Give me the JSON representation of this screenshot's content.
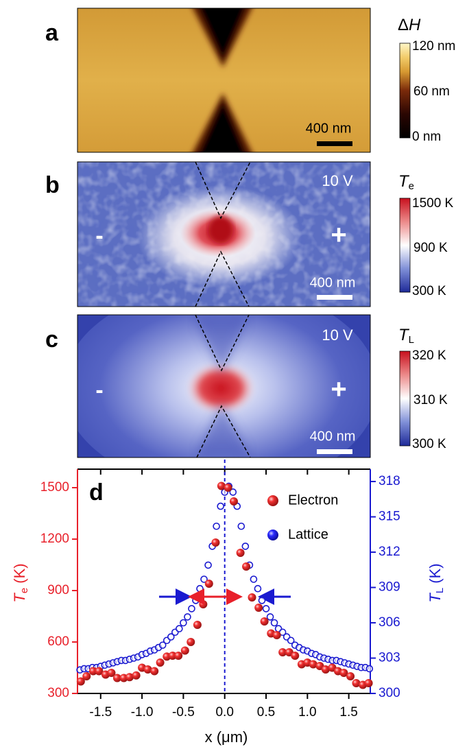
{
  "panels": [
    {
      "label": "a",
      "colorbar_title": [
        "Δ",
        "H"
      ],
      "colorbar_ticks": [
        "120 nm",
        "60 nm",
        "0 nm"
      ],
      "scale_bar": "400 nm"
    },
    {
      "label": "b",
      "colorbar_title": [
        "T",
        "e"
      ],
      "voltage": "10 V",
      "colorbar_ticks": [
        "1500 K",
        "900 K",
        "300 K"
      ],
      "scale_bar": "400 nm",
      "left_sign": "-",
      "right_sign": "+"
    },
    {
      "label": "c",
      "colorbar_title": [
        "T",
        "L"
      ],
      "voltage": "10 V",
      "colorbar_ticks": [
        "320 K",
        "310 K",
        "300 K"
      ],
      "scale_bar": "400 nm",
      "left_sign": "-",
      "right_sign": "+"
    }
  ],
  "chart_data": {
    "type": "scatter",
    "label": "d",
    "xlabel": "x (μm)",
    "ylabel": [
      "T",
      "e",
      " (K)"
    ],
    "y2label": [
      "T",
      "L",
      " (K)"
    ],
    "xlim": [
      -1.78,
      1.76
    ],
    "xticks": [
      -1.5,
      {
        "value": -1,
        "label": "-1.0"
      },
      -0.5,
      {
        "value": 0,
        "label": "0.0"
      },
      0.5,
      {
        "value": 1,
        "label": "1.0"
      },
      1.5
    ],
    "ylim": [
      300,
      1608
    ],
    "yticks": [
      300,
      600,
      900,
      1200,
      1500
    ],
    "ycolor": "#e8202a",
    "y2lim": [
      300,
      319.05
    ],
    "y2ticks": [
      300,
      303,
      306,
      309,
      312,
      315,
      318
    ],
    "y2color": "#1a1ad0",
    "vline": 0,
    "legend": "upper right",
    "series": [
      {
        "name": "Lattice",
        "color": "#1a1ad0",
        "axis": "y2",
        "x": [
          -1.75,
          -1.7,
          -1.65,
          -1.6,
          -1.55,
          -1.5,
          -1.45,
          -1.4,
          -1.35,
          -1.3,
          -1.25,
          -1.2,
          -1.15,
          -1.1,
          -1.05,
          -1,
          -0.95,
          -0.9,
          -0.85,
          -0.8,
          -0.75,
          -0.7,
          -0.65,
          -0.6,
          -0.55,
          -0.5,
          -0.45,
          -0.4,
          -0.35,
          -0.3,
          -0.25,
          -0.2,
          -0.15,
          -0.1,
          -0.05,
          0,
          0.05,
          0.1,
          0.15,
          0.2,
          0.25,
          0.3,
          0.35,
          0.4,
          0.45,
          0.5,
          0.55,
          0.6,
          0.65,
          0.7,
          0.75,
          0.8,
          0.85,
          0.9,
          0.95,
          1,
          1.05,
          1.1,
          1.15,
          1.2,
          1.25,
          1.3,
          1.35,
          1.4,
          1.45,
          1.5,
          1.55,
          1.6,
          1.65,
          1.7,
          1.75
        ],
        "values": [
          302.0,
          302.1,
          302.1,
          302.2,
          302.2,
          302.3,
          302.4,
          302.5,
          302.6,
          302.7,
          302.8,
          302.8,
          302.9,
          303.0,
          303.1,
          303.3,
          303.4,
          303.6,
          303.7,
          303.9,
          304.1,
          304.5,
          304.8,
          305.2,
          305.5,
          306.0,
          306.5,
          307.2,
          307.9,
          308.9,
          309.7,
          310.9,
          312.5,
          314.2,
          315.9,
          317.1,
          317.6,
          317.1,
          315.9,
          314.2,
          312.5,
          310.9,
          309.7,
          308.9,
          307.9,
          307.2,
          306.5,
          306.0,
          305.5,
          305.2,
          304.8,
          304.5,
          304.1,
          303.9,
          303.7,
          303.6,
          303.4,
          303.3,
          303.1,
          303.0,
          302.9,
          302.8,
          302.8,
          302.7,
          302.6,
          302.5,
          302.4,
          302.3,
          302.2,
          302.2,
          302.1
        ]
      },
      {
        "name": "Electron",
        "color": "#e8202a",
        "axis": "y",
        "x": [
          -1.74,
          -1.67,
          -1.59,
          -1.52,
          -1.44,
          -1.37,
          -1.3,
          -1.22,
          -1.15,
          -1.07,
          -1,
          -0.93,
          -0.85,
          -0.78,
          -0.7,
          -0.63,
          -0.56,
          -0.48,
          -0.41,
          -0.33,
          -0.26,
          -0.19,
          -0.11,
          -0.04,
          0.04,
          0.11,
          0.19,
          0.26,
          0.33,
          0.41,
          0.48,
          0.56,
          0.63,
          0.7,
          0.78,
          0.85,
          0.93,
          1,
          1.07,
          1.15,
          1.22,
          1.3,
          1.37,
          1.44,
          1.52,
          1.59,
          1.67,
          1.74
        ],
        "values": [
          370,
          400,
          430,
          430,
          410,
          420,
          390,
          390,
          395,
          405,
          450,
          440,
          430,
          480,
          515,
          520,
          520,
          550,
          600,
          700,
          820,
          940,
          1180,
          1510,
          1500,
          1420,
          1120,
          1040,
          860,
          800,
          720,
          650,
          640,
          540,
          540,
          520,
          470,
          480,
          470,
          460,
          440,
          450,
          430,
          420,
          400,
          360,
          350,
          360
        ]
      }
    ]
  }
}
